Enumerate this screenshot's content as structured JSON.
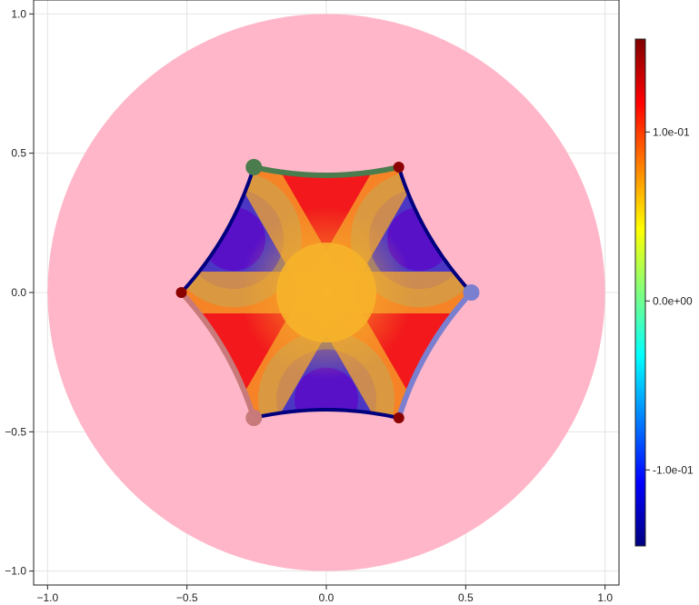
{
  "chart_data": {
    "type": "heatmap",
    "title": "",
    "xlabel": "",
    "ylabel": "",
    "xlim": [
      -1.05,
      1.05
    ],
    "ylim": [
      -1.05,
      1.05
    ],
    "x_ticks": [
      "−1.0",
      "−0.5",
      "0.0",
      "0.5",
      "1.0"
    ],
    "y_ticks": [
      "−1.0",
      "−0.5",
      "0.0",
      "0.5",
      "1.0"
    ],
    "x_tick_values": [
      -1.0,
      -0.5,
      0.0,
      0.5,
      1.0
    ],
    "y_tick_values": [
      -1.0,
      -0.5,
      0.0,
      0.5,
      1.0
    ],
    "grid": true,
    "background_disk": {
      "center": [
        0,
        0
      ],
      "radius": 1.0,
      "color": "#ffb6c8"
    },
    "hexagon": {
      "vertices": [
        [
          0.26,
          0.45
        ],
        [
          0.52,
          0.0
        ],
        [
          0.26,
          -0.45
        ],
        [
          -0.26,
          -0.45
        ],
        [
          -0.52,
          0.0
        ],
        [
          -0.26,
          0.45
        ]
      ],
      "outline_color": "#00007f",
      "center_value": 0.06
    },
    "edges": [
      {
        "from": [
          -0.26,
          0.45
        ],
        "to": [
          0.26,
          0.45
        ],
        "color": "#4a7c4e"
      },
      {
        "from": [
          0.52,
          0.0
        ],
        "to": [
          0.26,
          -0.45
        ],
        "color": "#7b7fd0"
      },
      {
        "from": [
          -0.52,
          0.0
        ],
        "to": [
          -0.26,
          -0.45
        ],
        "color": "#c87a7a"
      }
    ],
    "points": [
      {
        "x": -0.26,
        "y": 0.45,
        "color": "#4a7c4e",
        "size": "large"
      },
      {
        "x": 0.52,
        "y": 0.0,
        "color": "#7b7fd0",
        "size": "large"
      },
      {
        "x": -0.26,
        "y": -0.45,
        "color": "#c87a7a",
        "size": "large"
      },
      {
        "x": 0.26,
        "y": 0.45,
        "color": "#8b0000",
        "size": "small"
      },
      {
        "x": 0.26,
        "y": -0.45,
        "color": "#8b0000",
        "size": "small"
      },
      {
        "x": -0.52,
        "y": 0.0,
        "color": "#8b0000",
        "size": "small"
      }
    ],
    "colorbar": {
      "colormap": "jet",
      "range": [
        -0.145,
        0.155
      ],
      "tick_values": [
        0.1,
        0.0,
        -0.1
      ],
      "tick_labels": [
        "1.0e-01",
        "0.0e+00",
        "-1.0e-01"
      ]
    }
  }
}
